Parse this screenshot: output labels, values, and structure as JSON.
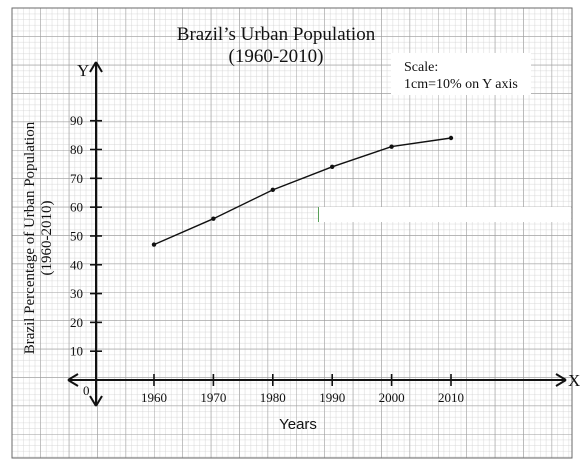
{
  "chart_data": {
    "type": "line",
    "title": "Brazil’s Urban Population",
    "subtitle": "(1960-2010)",
    "xlabel": "Years",
    "ylabel": "Brazil Percentage of Urban Population",
    "ylabel_sub": "(1960-2010)",
    "x_axis_letter": "X",
    "y_axis_letter": "Y",
    "origin_label": "0",
    "scale_note_title": "Scale:",
    "scale_note_text": "1cm=10% on Y axis",
    "x": [
      1960,
      1970,
      1980,
      1990,
      2000,
      2010
    ],
    "x_tick_labels": [
      "1960",
      "1970",
      "1980",
      "1990",
      "2000",
      "2010"
    ],
    "y_ticks": [
      10,
      20,
      30,
      40,
      50,
      60,
      70,
      80,
      90
    ],
    "y_tick_labels": [
      "10",
      "20",
      "30",
      "40",
      "50",
      "60",
      "70",
      "80",
      "90"
    ],
    "series": [
      {
        "values": [
          47,
          56,
          66,
          74,
          81,
          84
        ]
      }
    ],
    "ylim": [
      0,
      90
    ],
    "grid": true,
    "line_color": "#111111",
    "grid_minor_color": "#cfcfcf",
    "grid_major_color": "#9a9a9a",
    "mask_color": "#ffffff"
  }
}
